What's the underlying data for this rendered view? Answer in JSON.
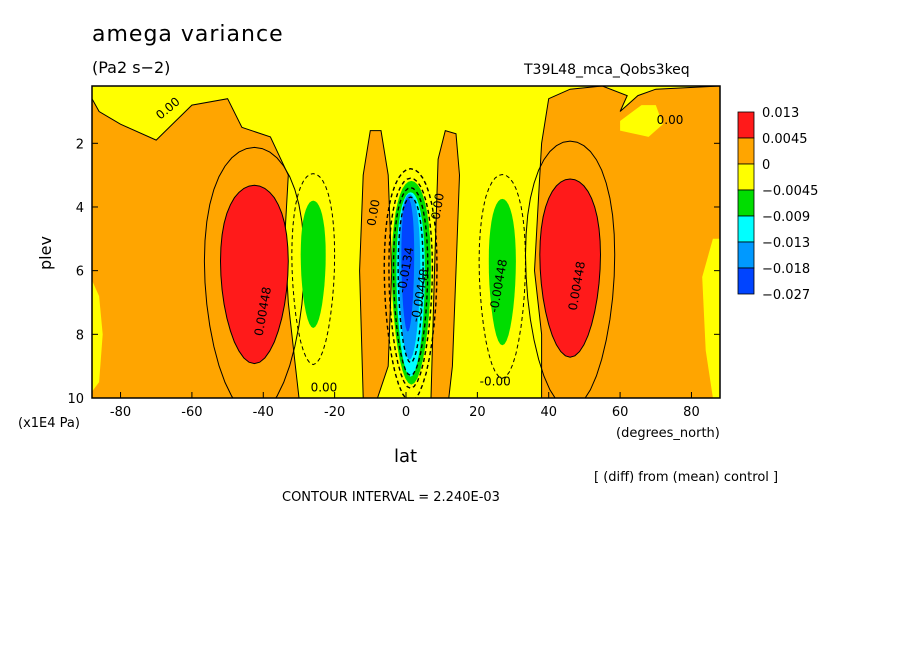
{
  "header": {
    "title": "amega variance",
    "units": "(Pa2 s−2)",
    "run_id": "T39L48_mca_Qobs3keq"
  },
  "axes": {
    "ylabel": "plev",
    "yunits": "(x1E4 Pa)",
    "xlabel": "lat",
    "xunits": "(degrees_north)"
  },
  "footer": {
    "diff_note": "[ (diff) from (mean) control ]",
    "contour_interval": "CONTOUR INTERVAL = 2.240E-03"
  },
  "colors": {
    "red": "#ff1a1a",
    "orange": "#ffa500",
    "yellow": "#ffff00",
    "green": "#00dd00",
    "cyan": "#00ffff",
    "lightblue": "#0099ff",
    "blue": "#0044ff"
  },
  "chart_data": {
    "type": "heatmap",
    "subtype": "filled-contour",
    "xlim": [
      -88,
      88
    ],
    "ylim": [
      10,
      0.2
    ],
    "x_ticks": [
      {
        "value": -80,
        "label": "-80"
      },
      {
        "value": -60,
        "label": "-60"
      },
      {
        "value": -40,
        "label": "-40"
      },
      {
        "value": -20,
        "label": "-20"
      },
      {
        "value": 0,
        "label": "0"
      },
      {
        "value": 20,
        "label": "20"
      },
      {
        "value": 40,
        "label": "40"
      },
      {
        "value": 60,
        "label": "60"
      },
      {
        "value": 80,
        "label": "80"
      }
    ],
    "y_ticks": [
      {
        "value": 2,
        "label": "2"
      },
      {
        "value": 4,
        "label": "4"
      },
      {
        "value": 6,
        "label": "6"
      },
      {
        "value": 8,
        "label": "8"
      },
      {
        "value": 10,
        "label": "10"
      }
    ],
    "legend": {
      "placement": "right",
      "labels": [
        "0.013",
        "0.0045",
        "0",
        "−0.0045",
        "−0.009",
        "−0.013",
        "−0.018",
        "−0.027"
      ],
      "colors": [
        "#ff1a1a",
        "#ffa500",
        "#ffff00",
        "#00dd00",
        "#00ffff",
        "#0099ff",
        "#0044ff"
      ]
    },
    "contour_labels": [
      {
        "text": "0.00",
        "lat": -66,
        "plev": 1.0
      },
      {
        "text": "0.00",
        "lat": 74,
        "plev": 1.4
      },
      {
        "text": "0.00",
        "lat": -23,
        "plev": 9.8
      },
      {
        "text": "-0.00",
        "lat": 25,
        "plev": 9.6
      },
      {
        "text": "0.00",
        "lat": -8,
        "plev": 4.2
      },
      {
        "text": "0.00",
        "lat": 10,
        "plev": 4.0
      },
      {
        "text": "0.00448",
        "lat": -39,
        "plev": 7.3
      },
      {
        "text": "-0.00448",
        "lat": 27,
        "plev": 6.5
      },
      {
        "text": "0.00448",
        "lat": 49,
        "plev": 6.5
      },
      {
        "text": "-0.0134",
        "lat": 1,
        "plev": 6.0
      },
      {
        "text": "-0.00448",
        "lat": 5,
        "plev": 6.8
      }
    ]
  }
}
